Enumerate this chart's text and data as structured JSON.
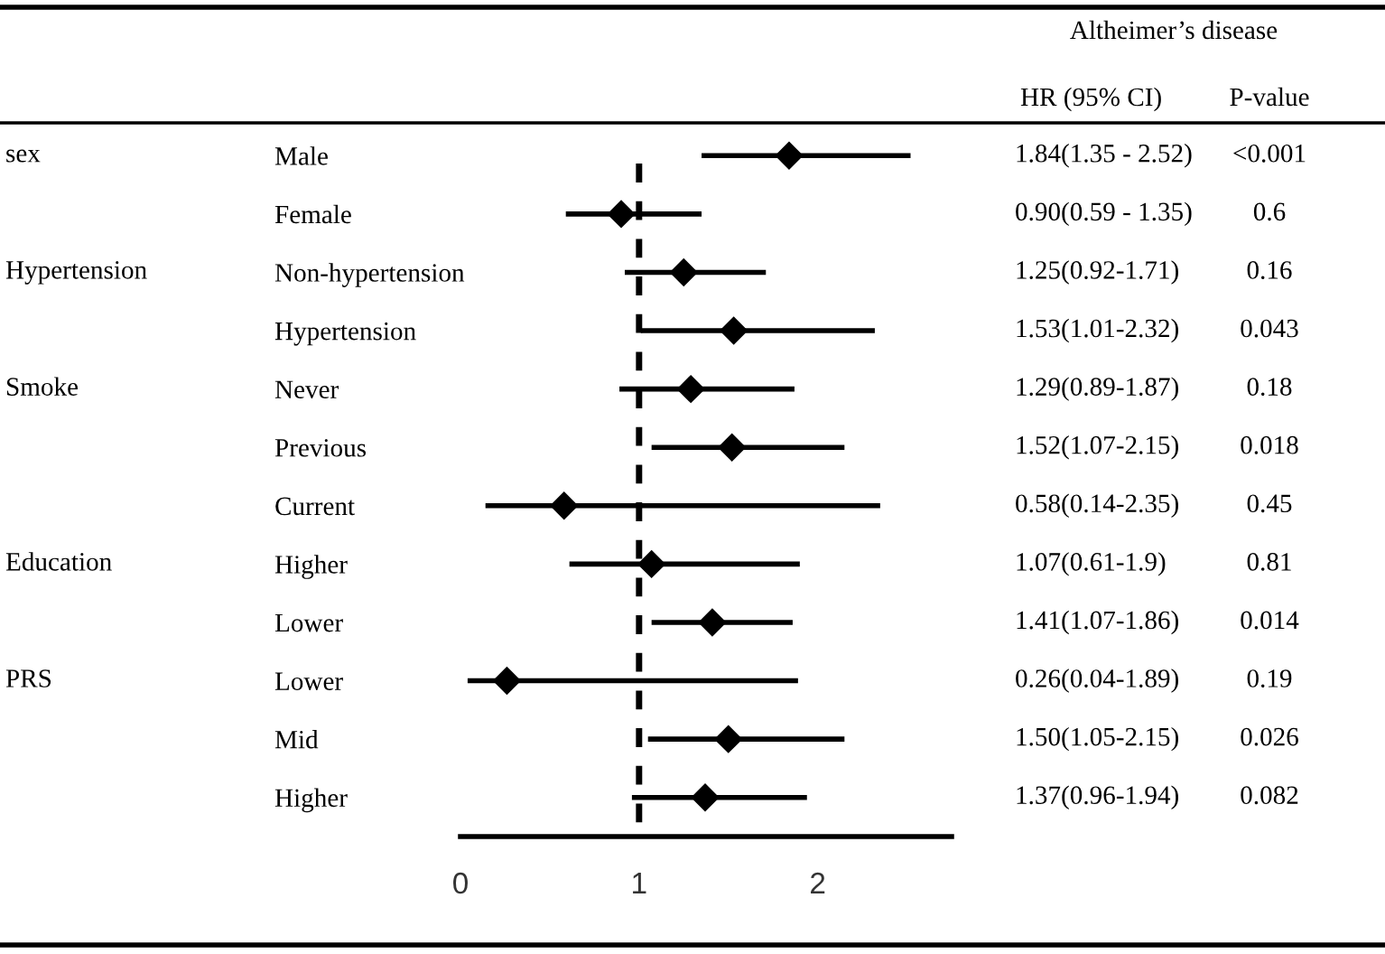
{
  "chart_data": {
    "type": "scatter",
    "orientation": "horizontal",
    "marker": "diamond",
    "categories": [
      "Male",
      "Female",
      "Non-hypertension",
      "Hypertension",
      "Never",
      "Previous",
      "Current",
      "Higher",
      "Lower",
      "Lower",
      "Mid",
      "Higher"
    ],
    "series": [
      {
        "color": "#000000",
        "values": [
          1.84,
          0.9,
          null,
          null,
          null,
          null,
          null,
          null,
          null,
          null,
          null,
          null
        ],
        "errors": [
          [
            1.35,
            2.52
          ],
          [
            0.59,
            1.35
          ],
          null,
          null,
          null,
          null,
          null,
          null,
          null,
          null,
          null,
          null
        ]
      },
      {
        "color": "#000000",
        "values": [
          null,
          null,
          1.25,
          1.53,
          null,
          null,
          null,
          null,
          null,
          null,
          null,
          null
        ],
        "errors": [
          null,
          null,
          [
            0.92,
            1.71
          ],
          [
            1.01,
            2.32
          ],
          null,
          null,
          null,
          null,
          null,
          null,
          null,
          null
        ]
      },
      {
        "color": "#000000",
        "values": [
          null,
          null,
          null,
          null,
          1.29,
          1.52,
          0.58,
          null,
          null,
          null,
          null,
          null
        ],
        "errors": [
          null,
          null,
          null,
          null,
          [
            0.89,
            1.87
          ],
          [
            1.07,
            2.15
          ],
          [
            0.14,
            2.35
          ],
          null,
          null,
          null,
          null,
          null
        ]
      },
      {
        "color": "#000000",
        "values": [
          null,
          null,
          null,
          null,
          null,
          null,
          null,
          1.07,
          1.41,
          null,
          null,
          null
        ],
        "errors": [
          null,
          null,
          null,
          null,
          null,
          null,
          null,
          [
            0.61,
            1.9
          ],
          [
            1.07,
            1.86
          ],
          null,
          null,
          null
        ]
      },
      {
        "color": "#000000",
        "values": [
          null,
          null,
          null,
          null,
          null,
          null,
          null,
          null,
          null,
          0.26,
          1.5,
          1.37
        ],
        "errors": [
          null,
          null,
          null,
          null,
          null,
          null,
          null,
          null,
          null,
          [
            0.04,
            1.89
          ],
          [
            1.05,
            2.15
          ],
          [
            0.96,
            1.94
          ]
        ]
      }
    ],
    "xlim": [
      0,
      2.75
    ],
    "xticks": [
      0,
      1,
      2
    ],
    "grid": false,
    "legend": false,
    "ref_lines": [
      {
        "axis": "x",
        "value": 1,
        "color": "#000000",
        "line_style": "dashed"
      }
    ],
    "annotations": [
      "Altheimer’s disease",
      "HR (95% CI)",
      "P-value",
      "sex",
      "Hypertension",
      "Smoke",
      "Education",
      "PRS",
      "1.84(1.35 - 2.52)",
      "0.90(0.59 - 1.35)",
      "1.25(0.92-1.71)",
      "1.53(1.01-2.32)",
      "1.29(0.89-1.87)",
      "1.52(1.07-2.15)",
      "0.58(0.14-2.35)",
      "1.07(0.61-1.9)",
      "1.41(1.07-1.86)",
      "0.26(0.04-1.89)",
      "1.50(1.05-2.15)",
      "1.37(0.96-1.94)",
      "<0.001",
      "0.6",
      "0.16",
      "0.043",
      "0.18",
      "0.018",
      "0.45",
      "0.81",
      "0.014",
      "0.19",
      "0.026",
      "0.082"
    ]
  }
}
